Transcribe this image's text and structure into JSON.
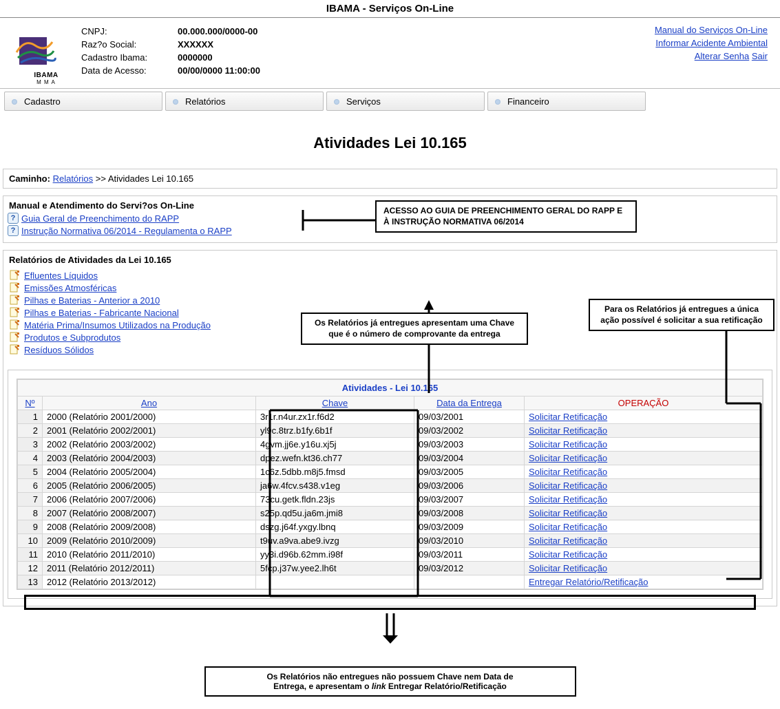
{
  "app_title": "IBAMA - Serviços On-Line",
  "header": {
    "cnpj_label": "CNPJ:",
    "cnpj_value": "00.000.000/0000-00",
    "razao_label": "Raz?o Social:",
    "razao_value": "XXXXXX",
    "cadastro_label": "Cadastro Ibama:",
    "cadastro_value": "0000000",
    "acesso_label": "Data de Acesso:",
    "acesso_value": "00/00/0000  11:00:00",
    "logo_text": "IBAMA",
    "logo_sub": "M M A"
  },
  "header_links": {
    "manual": "Manual do Serviços On-Line",
    "informar": "Informar Acidente Ambiental",
    "alterar": "Alterar Senha",
    "sair": "Sair"
  },
  "menu": [
    "Cadastro",
    "Relatórios",
    "Serviços",
    "Financeiro"
  ],
  "page_title": "Atividades Lei 10.165",
  "breadcrumb": {
    "label": "Caminho:",
    "link": "Relatórios",
    "tail": " >> Atividades Lei 10.165"
  },
  "manual_section": {
    "title": "Manual e Atendimento do Servi?os On-Line",
    "links": [
      "Guia Geral de Preenchimento do RAPP",
      "Instrução Normativa 06/2014 - Regulamenta o RAPP"
    ]
  },
  "callouts": {
    "manual": "ACESSO AO GUIA DE PREENCHIMENTO GERAL DO RAPP E À INSTRUÇÃO NORMATIVA 06/2014",
    "chave": "Os Relatórios já entregues apresentam uma Chave que é o número de comprovante da entrega",
    "operacao": "Para os Relatórios já entregues a única ação possível é solicitar a sua retificação",
    "footer_line1": "Os Relatórios não entregues não possuem Chave nem Data de",
    "footer_line2_pre": "Entrega, e apresentam o ",
    "footer_line2_it": "link",
    "footer_line2_post": " Entregar Relatório/Retificação"
  },
  "reports_section": {
    "title": "Relatórios de Atividades da Lei 10.165",
    "items": [
      "Efluentes Líquidos",
      "Emissões Atmosféricas",
      "Pilhas e Baterias - Anterior a 2010",
      "Pilhas e Baterias - Fabricante Nacional",
      "Matéria Prima/Insumos Utilizados na Produção",
      "Produtos e Subprodutos",
      "Resíduos Sólidos"
    ]
  },
  "table": {
    "caption": "Atividades - Lei 10.165",
    "headers": {
      "num": "Nº",
      "ano": "Ano",
      "chave": "Chave",
      "data": "Data da Entrega",
      "op": "OPERAÇÃO"
    },
    "op_link_ret": "Solicitar Retificação",
    "op_link_ent": "Entregar Relatório/Retificação",
    "rows": [
      {
        "n": "1",
        "ano": "2000 (Relatório 2001/2000)",
        "chave": "3r1r.n4ur.zx1r.f6d2",
        "data": "09/03/2001",
        "op": "ret"
      },
      {
        "n": "2",
        "ano": "2001 (Relatório 2002/2001)",
        "chave": "yl9c.8trz.b1fy.6b1f",
        "data": "09/03/2002",
        "op": "ret"
      },
      {
        "n": "3",
        "ano": "2002 (Relatório 2003/2002)",
        "chave": "4gvm.jj6e.y16u.xj5j",
        "data": "09/03/2003",
        "op": "ret"
      },
      {
        "n": "4",
        "ano": "2003 (Relatório 2004/2003)",
        "chave": "dpez.wefn.kt36.ch77",
        "data": "09/03/2004",
        "op": "ret"
      },
      {
        "n": "5",
        "ano": "2004 (Relatório 2005/2004)",
        "chave": "1c6z.5dbb.m8j5.fmsd",
        "data": "09/03/2005",
        "op": "ret"
      },
      {
        "n": "6",
        "ano": "2005 (Relatório 2006/2005)",
        "chave": "ja6w.4fcv.s438.v1eg",
        "data": "09/03/2006",
        "op": "ret"
      },
      {
        "n": "7",
        "ano": "2006 (Relatório 2007/2006)",
        "chave": "73cu.getk.fldn.23js",
        "data": "09/03/2007",
        "op": "ret"
      },
      {
        "n": "8",
        "ano": "2007 (Relatório 2008/2007)",
        "chave": "s25p.qd5u.ja6m.jmi8",
        "data": "09/03/2008",
        "op": "ret"
      },
      {
        "n": "9",
        "ano": "2008 (Relatório 2009/2008)",
        "chave": "dszg.j64f.yxgy.lbnq",
        "data": "09/03/2009",
        "op": "ret"
      },
      {
        "n": "10",
        "ano": "2009 (Relatório 2010/2009)",
        "chave": "t9uv.a9va.abe9.ivzg",
        "data": "09/03/2010",
        "op": "ret"
      },
      {
        "n": "11",
        "ano": "2010 (Relatório 2011/2010)",
        "chave": "yy3i.d96b.62mm.i98f",
        "data": "09/03/2011",
        "op": "ret"
      },
      {
        "n": "12",
        "ano": "2011 (Relatório 2012/2011)",
        "chave": "5fcp.j37w.yee2.lh6t",
        "data": "09/03/2012",
        "op": "ret"
      },
      {
        "n": "13",
        "ano": "2012 (Relatório 2013/2012)",
        "chave": "",
        "data": "",
        "op": "ent"
      }
    ]
  }
}
